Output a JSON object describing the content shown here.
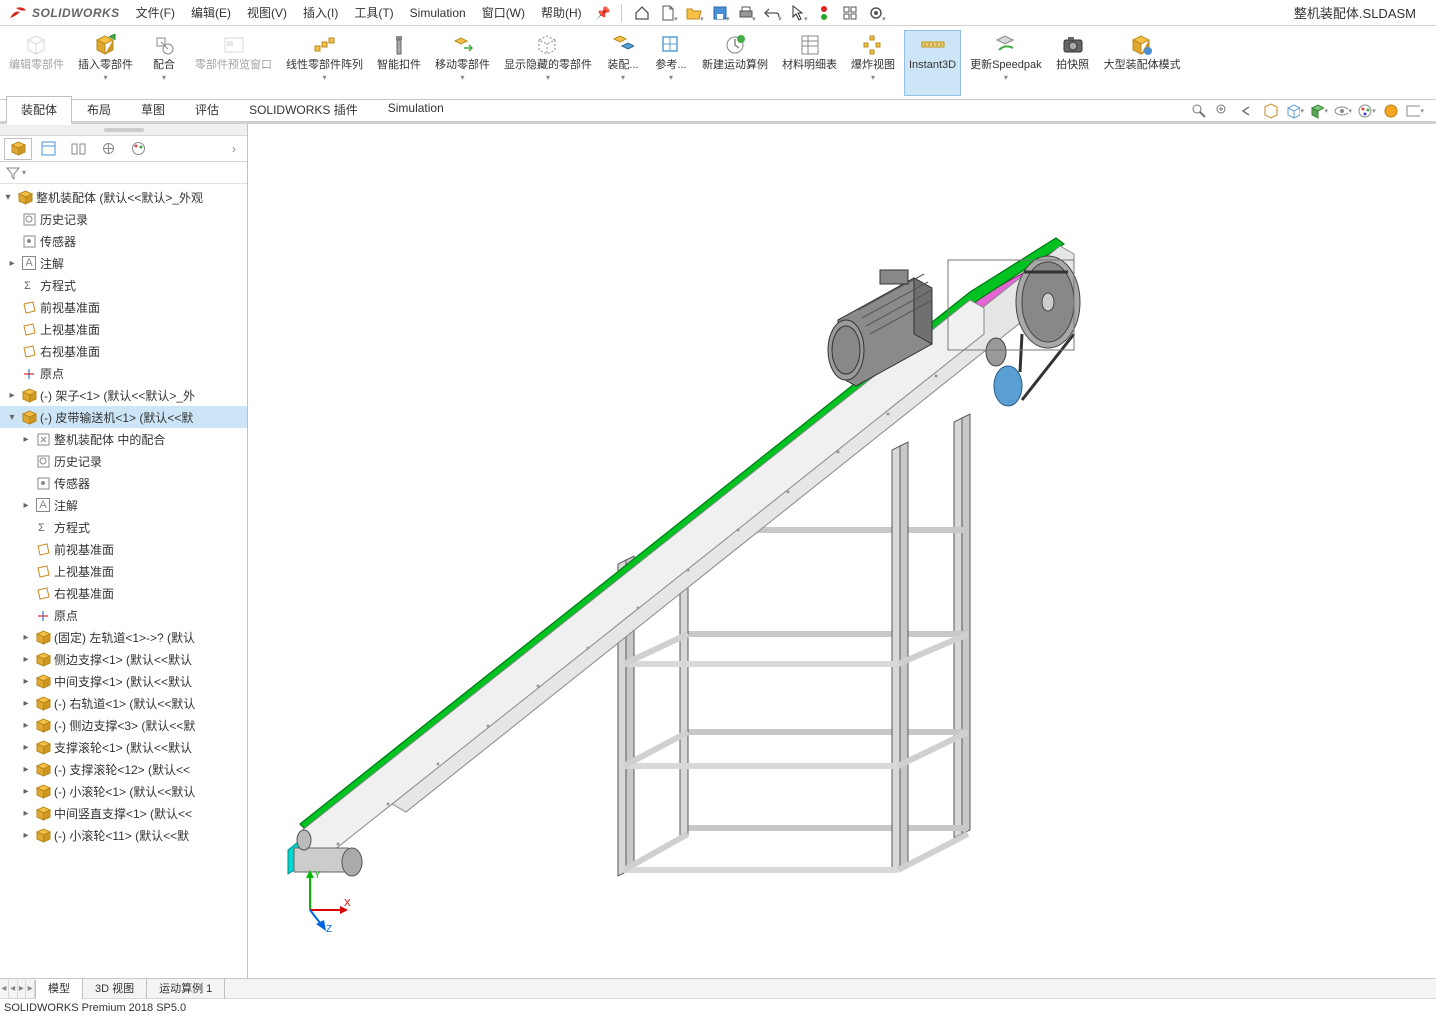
{
  "app": {
    "name": "SOLIDWORKS",
    "document": "整机装配体.SLDASM",
    "status": "SOLIDWORKS Premium 2018 SP5.0",
    "logo_color": "#da291c"
  },
  "menu": {
    "items": [
      "文件(F)",
      "编辑(E)",
      "视图(V)",
      "插入(I)",
      "工具(T)",
      "Simulation",
      "窗口(W)",
      "帮助(H)"
    ]
  },
  "ribbon": {
    "buttons": [
      {
        "name": "edit-part",
        "label": "编辑零部件",
        "disabled": true
      },
      {
        "name": "insert-comp",
        "label": "插入零部件",
        "dd": true
      },
      {
        "name": "mate",
        "label": "配合",
        "dd": true
      },
      {
        "name": "preview-window",
        "label": "零部件预览窗口",
        "disabled": true
      },
      {
        "name": "linear-pattern",
        "label": "线性零部件阵列",
        "dd": true
      },
      {
        "name": "smart-fastener",
        "label": "智能扣件"
      },
      {
        "name": "move-comp",
        "label": "移动零部件",
        "dd": true
      },
      {
        "name": "show-hidden",
        "label": "显示隐藏的零部件",
        "dd": true
      },
      {
        "name": "assembly",
        "label": "装配...",
        "dd": true
      },
      {
        "name": "reference",
        "label": "参考...",
        "dd": true
      },
      {
        "name": "new-motion",
        "label": "新建运动算例"
      },
      {
        "name": "bom",
        "label": "材料明细表"
      },
      {
        "name": "explode",
        "label": "爆炸视图",
        "dd": true
      },
      {
        "name": "instant3d",
        "label": "Instant3D",
        "active": true
      },
      {
        "name": "update-speedpak",
        "label": "更新Speedpak",
        "dd": true
      },
      {
        "name": "snapshot",
        "label": "拍快照"
      },
      {
        "name": "large-assembly",
        "label": "大型装配体模式"
      }
    ]
  },
  "cmdtabs": {
    "tabs": [
      "装配体",
      "布局",
      "草图",
      "评估",
      "SOLIDWORKS 插件",
      "Simulation"
    ],
    "active": 0
  },
  "tree": {
    "root": "整机装配体  (默认<<默认>_外观",
    "items": [
      {
        "lvl": 1,
        "exp": "",
        "icon": "hist",
        "label": "历史记录"
      },
      {
        "lvl": 1,
        "exp": "",
        "icon": "sensor",
        "label": "传感器"
      },
      {
        "lvl": 1,
        "exp": "▸",
        "icon": "annot",
        "label": "注解"
      },
      {
        "lvl": 1,
        "exp": "",
        "icon": "eq",
        "label": "方程式"
      },
      {
        "lvl": 1,
        "exp": "",
        "icon": "plane",
        "label": "前视基准面"
      },
      {
        "lvl": 1,
        "exp": "",
        "icon": "plane",
        "label": "上视基准面"
      },
      {
        "lvl": 1,
        "exp": "",
        "icon": "plane",
        "label": "右视基准面"
      },
      {
        "lvl": 1,
        "exp": "",
        "icon": "origin",
        "label": "原点"
      },
      {
        "lvl": 1,
        "exp": "▸",
        "icon": "asm",
        "label": "(-) 架子<1> (默认<<默认>_外"
      },
      {
        "lvl": 1,
        "exp": "▾",
        "icon": "asm",
        "label": "(-) 皮带输送机<1> (默认<<默",
        "sel": true
      },
      {
        "lvl": 2,
        "exp": "▸",
        "icon": "mate",
        "label": "整机装配体 中的配合"
      },
      {
        "lvl": 2,
        "exp": "",
        "icon": "hist",
        "label": "历史记录"
      },
      {
        "lvl": 2,
        "exp": "",
        "icon": "sensor",
        "label": "传感器"
      },
      {
        "lvl": 2,
        "exp": "▸",
        "icon": "annot",
        "label": "注解"
      },
      {
        "lvl": 2,
        "exp": "",
        "icon": "eq",
        "label": "方程式"
      },
      {
        "lvl": 2,
        "exp": "",
        "icon": "plane",
        "label": "前视基准面"
      },
      {
        "lvl": 2,
        "exp": "",
        "icon": "plane",
        "label": "上视基准面"
      },
      {
        "lvl": 2,
        "exp": "",
        "icon": "plane",
        "label": "右视基准面"
      },
      {
        "lvl": 2,
        "exp": "",
        "icon": "origin",
        "label": "原点"
      },
      {
        "lvl": 2,
        "exp": "▸",
        "icon": "part",
        "label": "(固定) 左轨道<1>->? (默认"
      },
      {
        "lvl": 2,
        "exp": "▸",
        "icon": "part",
        "label": "侧边支撑<1> (默认<<默认"
      },
      {
        "lvl": 2,
        "exp": "▸",
        "icon": "part",
        "label": "中间支撑<1> (默认<<默认"
      },
      {
        "lvl": 2,
        "exp": "▸",
        "icon": "part",
        "label": "(-) 右轨道<1> (默认<<默认"
      },
      {
        "lvl": 2,
        "exp": "▸",
        "icon": "part",
        "label": "(-) 侧边支撑<3> (默认<<默"
      },
      {
        "lvl": 2,
        "exp": "▸",
        "icon": "part",
        "label": "支撑滚轮<1> (默认<<默认"
      },
      {
        "lvl": 2,
        "exp": "▸",
        "icon": "part",
        "label": "(-) 支撑滚轮<12> (默认<<"
      },
      {
        "lvl": 2,
        "exp": "▸",
        "icon": "part",
        "label": "(-) 小滚轮<1> (默认<<默认"
      },
      {
        "lvl": 2,
        "exp": "▸",
        "icon": "part",
        "label": "中间竖直支撑<1> (默认<<"
      },
      {
        "lvl": 2,
        "exp": "▸",
        "icon": "part",
        "label": "(-) 小滚轮<11> (默认<<默"
      }
    ]
  },
  "bottomtabs": {
    "tabs": [
      "模型",
      "3D 视图",
      "运动算例 1"
    ],
    "active": 0
  },
  "colors": {
    "belt": "#e565d4",
    "guard_green": "#00c221",
    "rail_cyan": "#00d7d0",
    "frame": "#b8b8b8",
    "frame_edge": "#5a5a5a",
    "motor": "#7a7a7a",
    "roller_edge": "#880000",
    "accent_yellow": "#f5a623"
  }
}
